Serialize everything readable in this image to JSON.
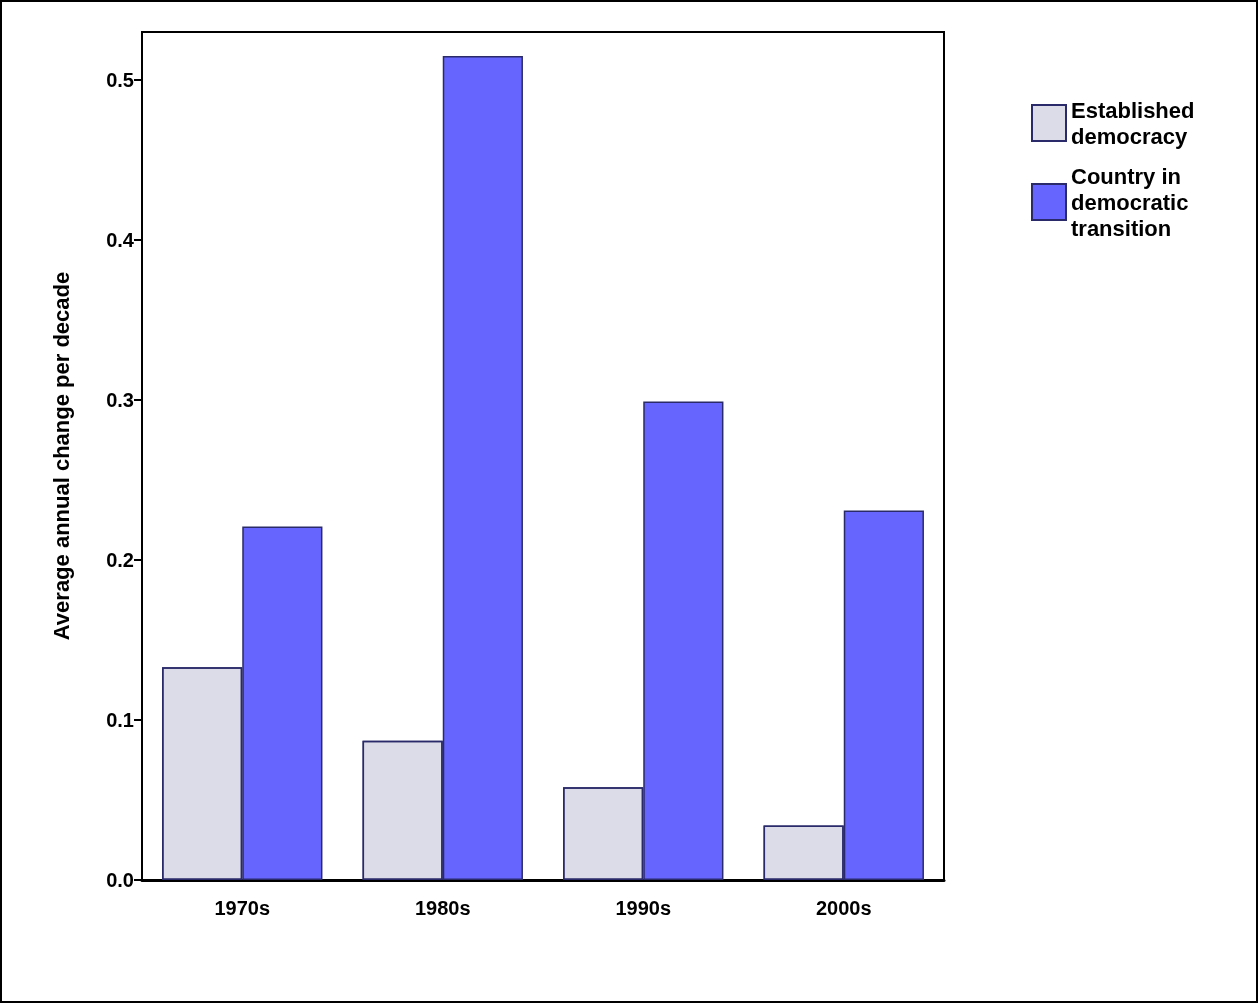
{
  "chart_data": {
    "type": "bar",
    "ylabel": "Average annual change per decade",
    "categories": [
      "1970s",
      "1980s",
      "1990s",
      "2000s"
    ],
    "series": [
      {
        "name": "Established democracy",
        "color": "#dcdce8",
        "values": [
          0.133,
          0.087,
          0.058,
          0.034
        ]
      },
      {
        "name": "Country in democratic transition",
        "color": "#6666ff",
        "values": [
          0.221,
          0.515,
          0.299,
          0.231
        ]
      }
    ],
    "ylim": [
      0,
      0.53
    ],
    "yticks": [
      {
        "value": 0,
        "label": "0.0"
      },
      0.1,
      0.2,
      0.3,
      0.4,
      0.5
    ],
    "grid": false,
    "legend": "top right"
  }
}
